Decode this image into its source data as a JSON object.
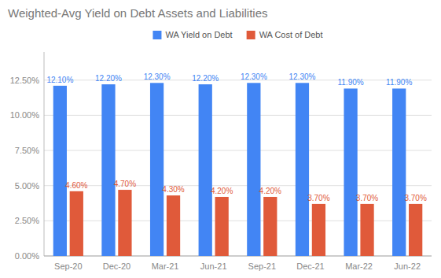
{
  "chart_data": {
    "type": "bar",
    "title": "Weighted-Avg Yield on Debt Assets and Liabilities",
    "categories": [
      "Sep-20",
      "Dec-20",
      "Mar-21",
      "Jun-21",
      "Sep-21",
      "Dec-21",
      "Mar-22",
      "Jun-22"
    ],
    "series": [
      {
        "name": "WA Yield on Debt",
        "color": "#4285F4",
        "values": [
          0.121,
          0.122,
          0.123,
          0.122,
          0.123,
          0.123,
          0.119,
          0.119
        ],
        "value_labels": [
          "12.10%",
          "12.20%",
          "12.30%",
          "12.20%",
          "12.30%",
          "12.30%",
          "11.90%",
          "11.90%"
        ]
      },
      {
        "name": "WA Cost of Debt",
        "color": "#E05A3A",
        "values": [
          0.046,
          0.047,
          0.043,
          0.042,
          0.042,
          0.037,
          0.037,
          0.037
        ],
        "value_labels": [
          "4.60%",
          "4.70%",
          "4.30%",
          "4.20%",
          "4.20%",
          "3.70%",
          "3.70%",
          "3.70%"
        ]
      }
    ],
    "ylim": [
      0.0,
      0.145
    ],
    "yticks": [
      {
        "value": 0.0,
        "label": "0.00%"
      },
      {
        "value": 0.025,
        "label": "2.50%"
      },
      {
        "value": 0.05,
        "label": "5.00%"
      },
      {
        "value": 0.075,
        "label": "7.50%"
      },
      {
        "value": 0.1,
        "label": "10.00%"
      },
      {
        "value": 0.125,
        "label": "12.50%"
      }
    ],
    "grid": true,
    "legend": "top",
    "data_labels": true
  }
}
